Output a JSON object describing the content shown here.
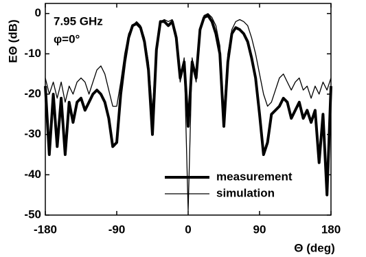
{
  "chart_data": {
    "type": "line",
    "x_label": "Θ  (deg)",
    "y_label": "EΘ (dB)",
    "annotations": [
      "7.95 GHz",
      "φ=0°"
    ],
    "x": [
      -180,
      -175,
      -170,
      -165,
      -160,
      -155,
      -150,
      -145,
      -140,
      -135,
      -130,
      -125,
      -120,
      -115,
      -110,
      -105,
      -100,
      -95,
      -90,
      -85,
      -80,
      -75,
      -70,
      -65,
      -60,
      -55,
      -50,
      -45,
      -40,
      -35,
      -30,
      -25,
      -20,
      -15,
      -10,
      -5,
      0,
      5,
      10,
      15,
      20,
      25,
      30,
      35,
      40,
      45,
      50,
      55,
      60,
      65,
      70,
      75,
      80,
      85,
      90,
      95,
      100,
      105,
      110,
      115,
      120,
      125,
      130,
      135,
      140,
      145,
      150,
      155,
      160,
      165,
      170,
      175,
      180
    ],
    "series": [
      {
        "name": "measurement",
        "color": "#000000",
        "width": 4,
        "values": [
          -18,
          -35,
          -20,
          -33,
          -21,
          -35,
          -22,
          -27,
          -22,
          -21,
          -24,
          -22,
          -20,
          -19,
          -20,
          -22,
          -26,
          -33,
          -32,
          -20,
          -12,
          -6,
          -3,
          -2.5,
          -3.5,
          -7,
          -14,
          -30,
          -9,
          -2,
          -2,
          -3,
          -2,
          -6,
          -16,
          -12,
          -28,
          -12,
          -16,
          -4,
          -1,
          -0.5,
          -2,
          -5,
          -10,
          -28,
          -12,
          -5,
          -3.5,
          -4,
          -5,
          -7,
          -11,
          -16,
          -25,
          -35,
          -32,
          -25,
          -24,
          -23,
          -21,
          -22,
          -26,
          -24,
          -22,
          -26,
          -24,
          -27,
          -24,
          -37,
          -25,
          -45,
          -18
        ]
      },
      {
        "name": "simulation",
        "color": "#000000",
        "width": 1.3,
        "values": [
          -16,
          -20,
          -17,
          -21,
          -17,
          -22,
          -18,
          -20,
          -17,
          -16,
          -17,
          -20,
          -17,
          -14,
          -13,
          -15,
          -19,
          -23,
          -23,
          -17,
          -10,
          -5,
          -3,
          -2,
          -3,
          -6,
          -12,
          -24,
          -8,
          -2,
          -1.5,
          -2,
          -1.5,
          -5,
          -17,
          -11,
          -49,
          -11,
          -17,
          -5,
          -0.5,
          0,
          -1,
          -3,
          -8,
          -24,
          -10,
          -4,
          -2,
          -1.5,
          -2,
          -3,
          -6,
          -10,
          -15,
          -20,
          -23,
          -22,
          -19,
          -16,
          -15,
          -17,
          -19,
          -17,
          -16,
          -19,
          -18,
          -21,
          -18,
          -20,
          -17,
          -19,
          -16
        ]
      }
    ],
    "xlim": [
      -180,
      180
    ],
    "xticks": [
      -180,
      -90,
      0,
      90,
      180
    ],
    "ylim": [
      -50,
      2.5
    ],
    "yticks": [
      -50,
      -40,
      -30,
      -20,
      -10,
      0
    ],
    "legend": "bottom"
  }
}
